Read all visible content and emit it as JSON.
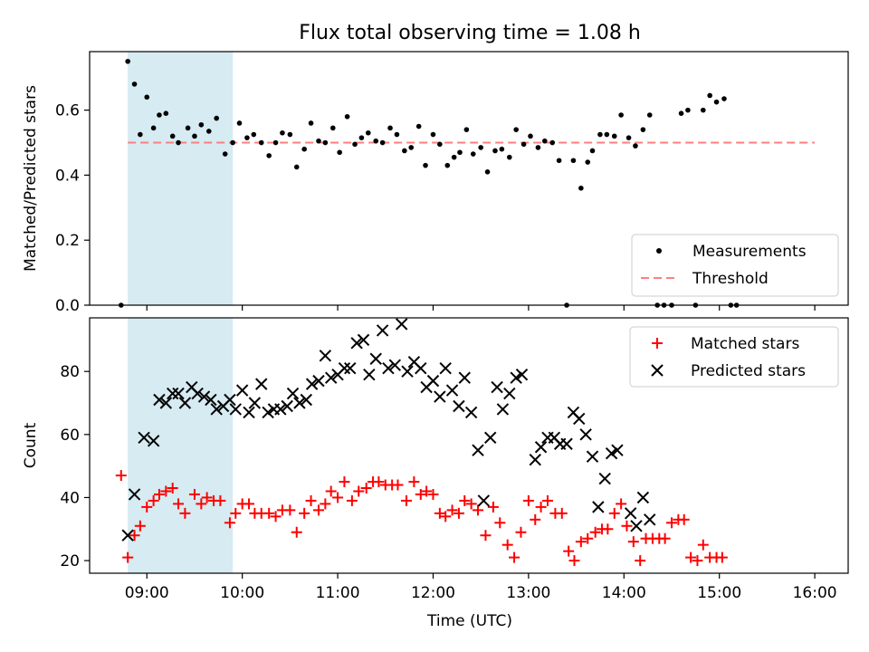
{
  "chart_data": [
    {
      "type": "scatter",
      "title": "Flux total observing time = 1.08 h",
      "xlabel": "",
      "ylabel": "Matched/Predicted stars",
      "ylim": [
        0.0,
        0.78
      ],
      "yticks": [
        "0.0",
        "0.2",
        "0.4",
        "0.6"
      ],
      "xlim_hours": [
        8.4,
        16.35
      ],
      "xticks": [
        "09:00",
        "10:00",
        "11:00",
        "12:00",
        "13:00",
        "14:00",
        "15:00",
        "16:00"
      ],
      "show_xtick_labels": false,
      "shaded_span_hours": [
        8.8,
        9.9
      ],
      "shaded_color": "#add8e6",
      "legend": {
        "position": "lower right",
        "entries": [
          "Measurements",
          "Threshold"
        ]
      },
      "threshold": {
        "name": "Threshold",
        "y": 0.5,
        "x_range_hours": [
          8.8,
          16.0
        ],
        "color": "#ff7f7f",
        "style": "dashed"
      },
      "series": [
        {
          "name": "Measurements",
          "marker": "dot",
          "color": "#000000",
          "points": [
            [
              8.73,
              0.0
            ],
            [
              8.8,
              0.75
            ],
            [
              8.87,
              0.68
            ],
            [
              8.93,
              0.525
            ],
            [
              9.0,
              0.64
            ],
            [
              9.07,
              0.545
            ],
            [
              9.13,
              0.585
            ],
            [
              9.2,
              0.59
            ],
            [
              9.27,
              0.52
            ],
            [
              9.33,
              0.5
            ],
            [
              9.43,
              0.545
            ],
            [
              9.5,
              0.52
            ],
            [
              9.57,
              0.555
            ],
            [
              9.65,
              0.535
            ],
            [
              9.73,
              0.575
            ],
            [
              9.82,
              0.465
            ],
            [
              9.9,
              0.5
            ],
            [
              9.97,
              0.56
            ],
            [
              10.05,
              0.515
            ],
            [
              10.12,
              0.525
            ],
            [
              10.2,
              0.5
            ],
            [
              10.28,
              0.46
            ],
            [
              10.35,
              0.5
            ],
            [
              10.42,
              0.53
            ],
            [
              10.5,
              0.525
            ],
            [
              10.57,
              0.425
            ],
            [
              10.65,
              0.48
            ],
            [
              10.72,
              0.56
            ],
            [
              10.8,
              0.505
            ],
            [
              10.87,
              0.5
            ],
            [
              10.95,
              0.545
            ],
            [
              11.02,
              0.47
            ],
            [
              11.1,
              0.58
            ],
            [
              11.18,
              0.495
            ],
            [
              11.25,
              0.515
            ],
            [
              11.32,
              0.53
            ],
            [
              11.4,
              0.505
            ],
            [
              11.47,
              0.5
            ],
            [
              11.55,
              0.545
            ],
            [
              11.62,
              0.525
            ],
            [
              11.7,
              0.475
            ],
            [
              11.77,
              0.485
            ],
            [
              11.85,
              0.55
            ],
            [
              11.92,
              0.43
            ],
            [
              12.0,
              0.525
            ],
            [
              12.07,
              0.495
            ],
            [
              12.15,
              0.43
            ],
            [
              12.22,
              0.455
            ],
            [
              12.28,
              0.47
            ],
            [
              12.35,
              0.54
            ],
            [
              12.42,
              0.465
            ],
            [
              12.5,
              0.485
            ],
            [
              12.57,
              0.41
            ],
            [
              12.65,
              0.475
            ],
            [
              12.72,
              0.48
            ],
            [
              12.8,
              0.455
            ],
            [
              12.87,
              0.54
            ],
            [
              12.95,
              0.495
            ],
            [
              13.02,
              0.52
            ],
            [
              13.1,
              0.485
            ],
            [
              13.17,
              0.505
            ],
            [
              13.25,
              0.5
            ],
            [
              13.32,
              0.445
            ],
            [
              13.4,
              0.0
            ],
            [
              13.47,
              0.445
            ],
            [
              13.55,
              0.36
            ],
            [
              13.62,
              0.44
            ],
            [
              13.67,
              0.475
            ],
            [
              13.75,
              0.525
            ],
            [
              13.82,
              0.525
            ],
            [
              13.9,
              0.52
            ],
            [
              13.97,
              0.585
            ],
            [
              14.05,
              0.515
            ],
            [
              14.12,
              0.49
            ],
            [
              14.2,
              0.54
            ],
            [
              14.27,
              0.585
            ],
            [
              14.35,
              0.0
            ],
            [
              14.42,
              0.0
            ],
            [
              14.5,
              0.0
            ],
            [
              14.6,
              0.59
            ],
            [
              14.67,
              0.6
            ],
            [
              14.75,
              0.0
            ],
            [
              14.83,
              0.6
            ],
            [
              14.9,
              0.645
            ],
            [
              14.97,
              0.625
            ],
            [
              15.05,
              0.635
            ],
            [
              15.12,
              0.0
            ],
            [
              15.18,
              0.0
            ]
          ]
        }
      ]
    },
    {
      "type": "scatter",
      "title": "",
      "xlabel": "Time (UTC)",
      "ylabel": "Count",
      "ylim": [
        16,
        97
      ],
      "yticks": [
        "20",
        "40",
        "60",
        "80"
      ],
      "xlim_hours": [
        8.4,
        16.35
      ],
      "xticks": [
        "09:00",
        "10:00",
        "11:00",
        "12:00",
        "13:00",
        "14:00",
        "15:00",
        "16:00"
      ],
      "show_xtick_labels": true,
      "shaded_span_hours": [
        8.8,
        9.9
      ],
      "shaded_color": "#add8e6",
      "legend": {
        "position": "upper right",
        "entries": [
          "Matched stars",
          "Predicted stars"
        ]
      },
      "series": [
        {
          "name": "Matched stars",
          "marker": "plus",
          "color": "#ff0000",
          "points": [
            [
              8.73,
              47
            ],
            [
              8.8,
              21
            ],
            [
              8.87,
              28
            ],
            [
              8.93,
              31
            ],
            [
              9.0,
              37
            ],
            [
              9.07,
              39
            ],
            [
              9.13,
              41
            ],
            [
              9.2,
              42
            ],
            [
              9.27,
              43
            ],
            [
              9.33,
              38
            ],
            [
              9.4,
              35
            ],
            [
              9.5,
              41
            ],
            [
              9.57,
              38
            ],
            [
              9.63,
              40
            ],
            [
              9.7,
              39
            ],
            [
              9.77,
              39
            ],
            [
              9.87,
              32
            ],
            [
              9.93,
              35
            ],
            [
              10.0,
              38
            ],
            [
              10.07,
              38
            ],
            [
              10.13,
              35
            ],
            [
              10.2,
              35
            ],
            [
              10.28,
              35
            ],
            [
              10.35,
              34
            ],
            [
              10.42,
              36
            ],
            [
              10.5,
              36
            ],
            [
              10.57,
              29
            ],
            [
              10.65,
              35
            ],
            [
              10.72,
              39
            ],
            [
              10.8,
              36
            ],
            [
              10.87,
              38
            ],
            [
              10.93,
              42
            ],
            [
              11.0,
              40
            ],
            [
              11.07,
              45
            ],
            [
              11.15,
              39
            ],
            [
              11.22,
              42
            ],
            [
              11.3,
              43
            ],
            [
              11.37,
              45
            ],
            [
              11.43,
              45
            ],
            [
              11.5,
              44
            ],
            [
              11.57,
              44
            ],
            [
              11.63,
              44
            ],
            [
              11.72,
              39
            ],
            [
              11.8,
              45
            ],
            [
              11.87,
              41
            ],
            [
              11.93,
              42
            ],
            [
              12.0,
              41
            ],
            [
              12.07,
              35
            ],
            [
              12.13,
              34
            ],
            [
              12.2,
              36
            ],
            [
              12.27,
              35
            ],
            [
              12.33,
              39
            ],
            [
              12.4,
              38
            ],
            [
              12.47,
              36
            ],
            [
              12.55,
              28
            ],
            [
              12.63,
              37
            ],
            [
              12.7,
              32
            ],
            [
              12.78,
              25
            ],
            [
              12.85,
              21
            ],
            [
              12.92,
              29
            ],
            [
              13.0,
              39
            ],
            [
              13.07,
              33
            ],
            [
              13.13,
              37
            ],
            [
              13.2,
              39
            ],
            [
              13.28,
              35
            ],
            [
              13.35,
              35
            ],
            [
              13.42,
              23
            ],
            [
              13.48,
              20
            ],
            [
              13.55,
              26
            ],
            [
              13.62,
              27
            ],
            [
              13.7,
              29
            ],
            [
              13.77,
              30
            ],
            [
              13.83,
              30
            ],
            [
              13.9,
              35
            ],
            [
              13.97,
              38
            ],
            [
              14.03,
              31
            ],
            [
              14.1,
              26
            ],
            [
              14.17,
              20
            ],
            [
              14.23,
              27
            ],
            [
              14.3,
              27
            ],
            [
              14.37,
              27
            ],
            [
              14.43,
              27
            ],
            [
              14.5,
              32
            ],
            [
              14.57,
              33
            ],
            [
              14.63,
              33
            ],
            [
              14.7,
              21
            ],
            [
              14.77,
              20
            ],
            [
              14.83,
              25
            ],
            [
              14.9,
              21
            ],
            [
              14.97,
              21
            ],
            [
              15.03,
              21
            ]
          ]
        },
        {
          "name": "Predicted stars",
          "marker": "x",
          "color": "#000000",
          "points": [
            [
              8.8,
              28
            ],
            [
              8.87,
              41
            ],
            [
              8.97,
              59
            ],
            [
              9.07,
              58
            ],
            [
              9.13,
              71
            ],
            [
              9.2,
              70
            ],
            [
              9.27,
              73
            ],
            [
              9.33,
              73
            ],
            [
              9.4,
              70
            ],
            [
              9.47,
              75
            ],
            [
              9.53,
              73
            ],
            [
              9.6,
              72
            ],
            [
              9.67,
              71
            ],
            [
              9.73,
              68
            ],
            [
              9.8,
              69
            ],
            [
              9.87,
              71
            ],
            [
              9.93,
              68
            ],
            [
              10.0,
              74
            ],
            [
              10.07,
              67
            ],
            [
              10.13,
              70
            ],
            [
              10.2,
              76
            ],
            [
              10.27,
              67
            ],
            [
              10.33,
              68
            ],
            [
              10.4,
              68
            ],
            [
              10.47,
              69
            ],
            [
              10.53,
              73
            ],
            [
              10.6,
              70
            ],
            [
              10.67,
              71
            ],
            [
              10.73,
              76
            ],
            [
              10.8,
              77
            ],
            [
              10.87,
              85
            ],
            [
              10.93,
              78
            ],
            [
              11.0,
              79
            ],
            [
              11.07,
              81
            ],
            [
              11.13,
              81
            ],
            [
              11.2,
              89
            ],
            [
              11.27,
              90
            ],
            [
              11.33,
              79
            ],
            [
              11.4,
              84
            ],
            [
              11.47,
              93
            ],
            [
              11.53,
              81
            ],
            [
              11.6,
              82
            ],
            [
              11.67,
              95
            ],
            [
              11.73,
              80
            ],
            [
              11.8,
              83
            ],
            [
              11.87,
              81
            ],
            [
              11.93,
              75
            ],
            [
              12.0,
              77
            ],
            [
              12.07,
              72
            ],
            [
              12.13,
              81
            ],
            [
              12.2,
              74
            ],
            [
              12.27,
              69
            ],
            [
              12.33,
              78
            ],
            [
              12.4,
              67
            ],
            [
              12.47,
              55
            ],
            [
              12.53,
              39
            ],
            [
              12.6,
              59
            ],
            [
              12.67,
              75
            ],
            [
              12.73,
              68
            ],
            [
              12.8,
              73
            ],
            [
              12.87,
              78
            ],
            [
              12.93,
              79
            ],
            [
              13.07,
              52
            ],
            [
              13.13,
              56
            ],
            [
              13.2,
              59
            ],
            [
              13.27,
              59
            ],
            [
              13.33,
              57
            ],
            [
              13.4,
              57
            ],
            [
              13.47,
              67
            ],
            [
              13.53,
              65
            ],
            [
              13.6,
              60
            ],
            [
              13.67,
              53
            ],
            [
              13.73,
              37
            ],
            [
              13.8,
              46
            ],
            [
              13.87,
              54
            ],
            [
              13.93,
              55
            ],
            [
              14.07,
              35
            ],
            [
              14.13,
              31
            ],
            [
              14.2,
              40
            ],
            [
              14.27,
              33
            ]
          ]
        }
      ]
    }
  ]
}
